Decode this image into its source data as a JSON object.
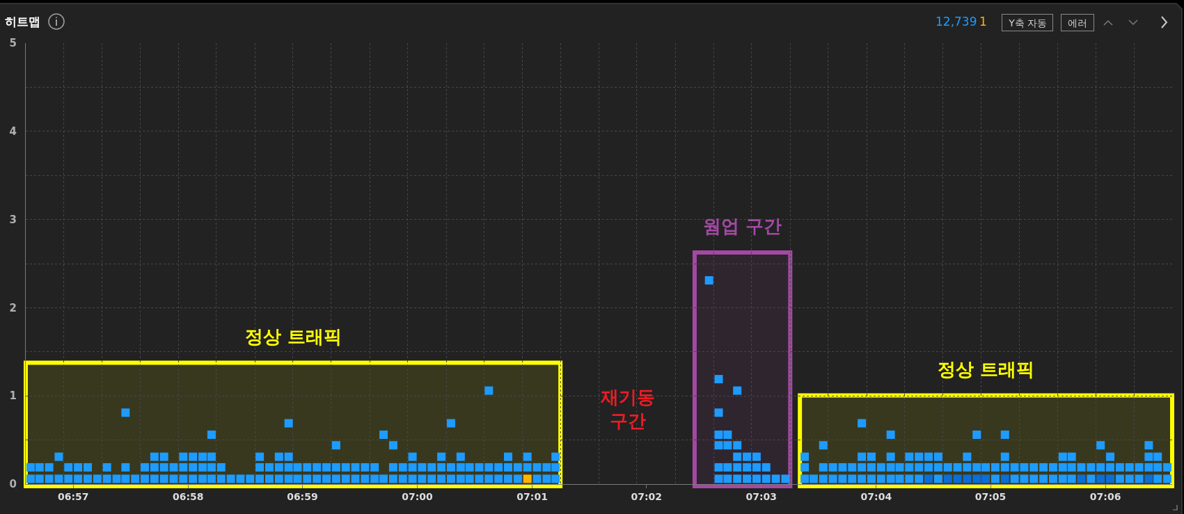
{
  "chart_data": {
    "type": "scatter",
    "title": "히트맵",
    "marker": "square",
    "grid": true,
    "legend": "top right",
    "xlim": [
      6.9431,
      7.1097
    ],
    "ylim": [
      0,
      5
    ],
    "xticks": [
      {
        "value": 6.9486,
        "label": null
      },
      {
        "value": 6.95,
        "label": "06:57"
      },
      {
        "value": 6.9542,
        "label": null
      },
      {
        "value": 6.9597,
        "label": null
      },
      {
        "value": 6.9653,
        "label": null
      },
      {
        "value": 6.9667,
        "label": "06:58"
      },
      {
        "value": 6.9708,
        "label": null
      },
      {
        "value": 6.9764,
        "label": null
      },
      {
        "value": 6.9819,
        "label": null
      },
      {
        "value": 6.9833,
        "label": "06:59"
      },
      {
        "value": 6.9875,
        "label": null
      },
      {
        "value": 6.9931,
        "label": null
      },
      {
        "value": 6.9986,
        "label": null
      },
      {
        "value": 7,
        "label": "07:00"
      },
      {
        "value": 7.0042,
        "label": null
      },
      {
        "value": 7.0097,
        "label": null
      },
      {
        "value": 7.0153,
        "label": null
      },
      {
        "value": 7.0167,
        "label": "07:01"
      },
      {
        "value": 7.0208,
        "label": null
      },
      {
        "value": 7.0264,
        "label": null
      },
      {
        "value": 7.0319,
        "label": null
      },
      {
        "value": 7.0333,
        "label": "07:02"
      },
      {
        "value": 7.0375,
        "label": null
      },
      {
        "value": 7.0431,
        "label": null
      },
      {
        "value": 7.0486,
        "label": null
      },
      {
        "value": 7.05,
        "label": "07:03"
      },
      {
        "value": 7.0542,
        "label": null
      },
      {
        "value": 7.0597,
        "label": null
      },
      {
        "value": 7.0653,
        "label": null
      },
      {
        "value": 7.0667,
        "label": "07:04"
      },
      {
        "value": 7.0708,
        "label": null
      },
      {
        "value": 7.0764,
        "label": null
      },
      {
        "value": 7.0819,
        "label": null
      },
      {
        "value": 7.0833,
        "label": "07:05"
      },
      {
        "value": 7.0875,
        "label": null
      },
      {
        "value": 7.0931,
        "label": null
      },
      {
        "value": 7.0986,
        "label": null
      },
      {
        "value": 7.1,
        "label": "07:06"
      },
      {
        "value": 7.1042,
        "label": null
      }
    ],
    "yticks": [
      0,
      {
        "value": 0.5,
        "label": null
      },
      1,
      {
        "value": 1.5,
        "label": null
      },
      2,
      {
        "value": 2.5,
        "label": null
      },
      3,
      {
        "value": 3.5,
        "label": null
      },
      4,
      {
        "value": 4.5,
        "label": null
      },
      5
    ],
    "series": [
      {
        "name": "12,739",
        "color": "#1e9bff",
        "x": [
          6.9438,
          6.9438,
          6.9451,
          6.9451,
          6.9465,
          6.9465,
          6.9479,
          6.9479,
          6.9493,
          6.9493,
          6.9507,
          6.9507,
          6.9521,
          6.9521,
          6.9535,
          6.9549,
          6.9549,
          6.9563,
          6.9576,
          6.9576,
          6.9576,
          6.959,
          6.9604,
          6.9604,
          6.9618,
          6.9618,
          6.9618,
          6.9632,
          6.9632,
          6.9632,
          6.9646,
          6.9646,
          6.966,
          6.966,
          6.966,
          6.9674,
          6.9674,
          6.9674,
          6.9688,
          6.9688,
          6.9688,
          6.9701,
          6.9701,
          6.9701,
          6.9701,
          6.9715,
          6.9715,
          6.9729,
          6.9743,
          6.9757,
          6.9771,
          6.9771,
          6.9771,
          6.9785,
          6.9785,
          6.9799,
          6.9799,
          6.9799,
          6.9813,
          6.9813,
          6.9813,
          6.9813,
          6.9826,
          6.9826,
          6.984,
          6.984,
          6.9854,
          6.9854,
          6.9868,
          6.9868,
          6.9882,
          6.9882,
          6.9882,
          6.9896,
          6.9896,
          6.991,
          6.991,
          6.9924,
          6.9924,
          6.9938,
          6.9938,
          6.9951,
          6.9951,
          6.9965,
          6.9965,
          6.9965,
          6.9979,
          6.9979,
          6.9993,
          6.9993,
          6.9993,
          7.0007,
          7.0007,
          7.0021,
          7.0021,
          7.0035,
          7.0035,
          7.0035,
          7.0049,
          7.0049,
          7.0049,
          7.0063,
          7.0063,
          7.0063,
          7.0076,
          7.0076,
          7.009,
          7.009,
          7.0104,
          7.0104,
          7.0104,
          7.0118,
          7.0118,
          7.0132,
          7.0132,
          7.0132,
          7.0146,
          7.0146,
          7.016,
          7.016,
          7.0174,
          7.0174,
          7.0188,
          7.0188,
          7.0201,
          7.0201,
          7.0201,
          7.0424,
          7.0438,
          7.0438,
          7.0438,
          7.0438,
          7.0438,
          7.0438,
          7.0451,
          7.0451,
          7.0451,
          7.0451,
          7.0465,
          7.0465,
          7.0465,
          7.0465,
          7.0465,
          7.0479,
          7.0479,
          7.0479,
          7.0493,
          7.0493,
          7.0493,
          7.0507,
          7.0507,
          7.0521,
          7.0535,
          7.0563,
          7.0563,
          7.0563,
          7.0576,
          7.059,
          7.059,
          7.059,
          7.0604,
          7.0604,
          7.0618,
          7.0618,
          7.0632,
          7.0632,
          7.0646,
          7.0646,
          7.0646,
          7.0646,
          7.066,
          7.066,
          7.066,
          7.0674,
          7.0674,
          7.0688,
          7.0688,
          7.0688,
          7.0688,
          7.0701,
          7.0701,
          7.0715,
          7.0715,
          7.0715,
          7.0729,
          7.0729,
          7.0729,
          7.0743,
          7.0743,
          7.0757,
          7.0757,
          7.0757,
          7.0771,
          7.0785,
          7.0799,
          7.0799,
          7.0813,
          7.0813,
          7.0826,
          7.084,
          7.084,
          7.0854,
          7.0854,
          7.0854,
          7.0868,
          7.0868,
          7.0882,
          7.0882,
          7.0896,
          7.0896,
          7.091,
          7.091,
          7.0924,
          7.0924,
          7.0938,
          7.0938,
          7.0938,
          7.0951,
          7.0951,
          7.0951,
          7.0965,
          7.0979,
          7.0979,
          7.0993,
          7.0993,
          7.1007,
          7.1007,
          7.1021,
          7.1021,
          7.1035,
          7.1035,
          7.1049,
          7.1049,
          7.1063,
          7.1063,
          7.1063,
          7.1076,
          7.1076,
          7.1076,
          7.109,
          7.109,
          7.0743,
          7.0771,
          7.0785,
          7.0799,
          7.0813,
          7.0826,
          7.0854,
          7.0965,
          7.0993,
          7.1007,
          7.1063
        ],
        "values": [
          0.06,
          0.19,
          0.06,
          0.19,
          0.06,
          0.19,
          0.06,
          0.31,
          0.06,
          0.19,
          0.06,
          0.19,
          0.06,
          0.19,
          0.06,
          0.06,
          0.19,
          0.06,
          0.06,
          0.19,
          0.81,
          0.06,
          0.06,
          0.19,
          0.06,
          0.19,
          0.31,
          0.06,
          0.19,
          0.31,
          0.06,
          0.19,
          0.06,
          0.19,
          0.31,
          0.06,
          0.19,
          0.31,
          0.06,
          0.19,
          0.31,
          0.06,
          0.19,
          0.31,
          0.56,
          0.06,
          0.19,
          0.06,
          0.06,
          0.06,
          0.06,
          0.19,
          0.31,
          0.06,
          0.19,
          0.06,
          0.19,
          0.31,
          0.06,
          0.19,
          0.31,
          0.69,
          0.06,
          0.19,
          0.06,
          0.19,
          0.06,
          0.19,
          0.06,
          0.19,
          0.06,
          0.19,
          0.44,
          0.06,
          0.19,
          0.06,
          0.19,
          0.06,
          0.19,
          0.06,
          0.19,
          0.06,
          0.56,
          0.06,
          0.19,
          0.44,
          0.06,
          0.19,
          0.06,
          0.19,
          0.31,
          0.06,
          0.19,
          0.06,
          0.19,
          0.06,
          0.19,
          0.31,
          0.06,
          0.19,
          0.69,
          0.06,
          0.19,
          0.31,
          0.06,
          0.19,
          0.06,
          0.19,
          0.06,
          0.19,
          1.06,
          0.06,
          0.19,
          0.06,
          0.19,
          0.31,
          0.06,
          0.19,
          0.19,
          0.31,
          0.06,
          0.19,
          0.06,
          0.19,
          0.06,
          0.19,
          0.31,
          2.31,
          0.06,
          0.19,
          0.44,
          0.56,
          0.81,
          1.19,
          0.06,
          0.19,
          0.44,
          0.56,
          0.06,
          0.19,
          0.31,
          0.44,
          1.06,
          0.06,
          0.19,
          0.31,
          0.06,
          0.19,
          0.31,
          0.06,
          0.19,
          0.06,
          0.06,
          0.06,
          0.19,
          0.31,
          0.06,
          0.06,
          0.19,
          0.44,
          0.06,
          0.19,
          0.06,
          0.19,
          0.06,
          0.19,
          0.06,
          0.19,
          0.31,
          0.69,
          0.06,
          0.19,
          0.31,
          0.06,
          0.19,
          0.06,
          0.19,
          0.31,
          0.56,
          0.06,
          0.19,
          0.06,
          0.19,
          0.31,
          0.06,
          0.19,
          0.31,
          0.19,
          0.31,
          0.06,
          0.19,
          0.31,
          0.19,
          0.19,
          0.19,
          0.31,
          0.19,
          0.56,
          0.19,
          0.06,
          0.19,
          0.19,
          0.31,
          0.56,
          0.06,
          0.19,
          0.06,
          0.19,
          0.06,
          0.19,
          0.06,
          0.19,
          0.06,
          0.19,
          0.06,
          0.19,
          0.31,
          0.06,
          0.19,
          0.31,
          0.19,
          0.06,
          0.19,
          0.19,
          0.44,
          0.19,
          0.31,
          0.06,
          0.19,
          0.06,
          0.19,
          0.06,
          0.19,
          0.19,
          0.31,
          0.44,
          0.06,
          0.19,
          0.31,
          0.06,
          0.19,
          0.06,
          0.06,
          0.06,
          0.06,
          0.06,
          0.06,
          0.06,
          0.06,
          0.06,
          0.06,
          0.06
        ],
        "colors": [
          "#1e9bff",
          "#1e9bff",
          "#1e9bff",
          "#1e9bff",
          "#1e9bff",
          "#1e9bff",
          "#1e9bff",
          "#1e9bff",
          "#1e9bff",
          "#1e9bff",
          "#1e9bff",
          "#1e9bff",
          "#1e9bff",
          "#1e9bff",
          "#1e9bff",
          "#1e9bff",
          "#1e9bff",
          "#1e9bff",
          "#1e9bff",
          "#1e9bff",
          "#1e9bff",
          "#1e9bff",
          "#1e9bff",
          "#1e9bff",
          "#1e9bff",
          "#1e9bff",
          "#1e9bff",
          "#1e9bff",
          "#1e9bff",
          "#1e9bff",
          "#1e9bff",
          "#1e9bff",
          "#1e9bff",
          "#1e9bff",
          "#1e9bff",
          "#1e9bff",
          "#1e9bff",
          "#1e9bff",
          "#1e9bff",
          "#1e9bff",
          "#1e9bff",
          "#1e9bff",
          "#1e9bff",
          "#1e9bff",
          "#1e9bff",
          "#1e9bff",
          "#1e9bff",
          "#1e9bff",
          "#1e9bff",
          "#1e9bff",
          "#1e9bff",
          "#1e9bff",
          "#1e9bff",
          "#1e9bff",
          "#1e9bff",
          "#1e9bff",
          "#1e9bff",
          "#1e9bff",
          "#1e9bff",
          "#1e9bff",
          "#1e9bff",
          "#1e9bff",
          "#1e9bff",
          "#1e9bff",
          "#1e9bff",
          "#1e9bff",
          "#1e9bff",
          "#1e9bff",
          "#1e9bff",
          "#1e9bff",
          "#1e9bff",
          "#1e9bff",
          "#1e9bff",
          "#1e9bff",
          "#1e9bff",
          "#1e9bff",
          "#1e9bff",
          "#1e9bff",
          "#1e9bff",
          "#1e9bff",
          "#1e9bff",
          "#1e9bff",
          "#1e9bff",
          "#1e9bff",
          "#1e9bff",
          "#1e9bff",
          "#1e9bff",
          "#1e9bff",
          "#1e9bff",
          "#1e9bff",
          "#1e9bff",
          "#1e9bff",
          "#1e9bff",
          "#1e9bff",
          "#1e9bff",
          "#1e9bff",
          "#1e9bff",
          "#1e9bff",
          "#1e9bff",
          "#1e9bff",
          "#1e9bff",
          "#1e9bff",
          "#1e9bff",
          "#1e9bff",
          "#1e9bff",
          "#1e9bff",
          "#1e9bff",
          "#1e9bff",
          "#1e9bff",
          "#1e9bff",
          "#1e9bff",
          "#1e9bff",
          "#1e9bff",
          "#1e9bff",
          "#1e9bff",
          "#1e9bff",
          "#1e9bff",
          "#1e9bff",
          "#1e9bff",
          "#1e9bff",
          "#1e9bff",
          "#1e9bff",
          "#1e9bff",
          "#1e9bff",
          "#1e9bff",
          "#1e9bff",
          "#1e9bff",
          "#1e9bff",
          "#1e9bff",
          "#1e9bff",
          "#1e9bff",
          "#1e9bff",
          "#1e9bff",
          "#1e9bff",
          "#1e9bff",
          "#1e9bff",
          "#1e9bff",
          "#1e9bff",
          "#1e9bff",
          "#1e9bff",
          "#1e9bff",
          "#1e9bff",
          "#1e9bff",
          "#1e9bff",
          "#1e9bff",
          "#1e9bff",
          "#1e9bff",
          "#1e9bff",
          "#1e9bff",
          "#1e9bff",
          "#1e9bff",
          "#1e9bff",
          "#1e9bff",
          "#1e9bff",
          "#1e9bff",
          "#1e9bff",
          "#1e9bff",
          "#1e9bff",
          "#1e9bff",
          "#1e9bff",
          "#1e9bff",
          "#1e9bff",
          "#1e9bff",
          "#1e9bff",
          "#1e9bff",
          "#1e9bff",
          "#1e9bff",
          "#1e9bff",
          "#1e9bff",
          "#1e9bff",
          "#1e9bff",
          "#1e9bff",
          "#1e9bff",
          "#1e9bff",
          "#1e9bff",
          "#1e9bff",
          "#1e9bff",
          "#1e9bff",
          "#1e9bff",
          "#1e9bff",
          "#1e9bff",
          "#1e9bff",
          "#1e9bff",
          "#1e9bff",
          "#1e9bff",
          "#1e9bff",
          "#1e9bff",
          "#1e9bff",
          "#1e9bff",
          "#1e9bff",
          "#1e9bff",
          "#1e9bff",
          "#1e9bff",
          "#1e9bff",
          "#1e9bff",
          "#1e9bff",
          "#1e9bff",
          "#1e9bff",
          "#1e9bff",
          "#1e9bff",
          "#1e9bff",
          "#1e9bff",
          "#1e9bff",
          "#1e9bff",
          "#1e9bff",
          "#1e9bff",
          "#1e9bff",
          "#1e9bff",
          "#1e9bff",
          "#1e9bff",
          "#1e9bff",
          "#1e9bff",
          "#1e9bff",
          "#1e9bff",
          "#1e9bff",
          "#1e9bff",
          "#1e9bff",
          "#1e9bff",
          "#1e9bff",
          "#1e9bff",
          "#1e9bff",
          "#1e9bff",
          "#1e9bff",
          "#1e9bff",
          "#1e9bff",
          "#1e9bff",
          "#1e9bff",
          "#1e9bff",
          "#1e9bff",
          "#1e9bff",
          "#1e9bff",
          "#1e9bff",
          "#1e9bff",
          "#1e9bff",
          "#1e9bff",
          "#1e9bff",
          "#1e9bff",
          "#1e9bff",
          "#1e9bff",
          "#1e9bff",
          "#1e9bff",
          "#0b6ed6",
          "#0b6ed6",
          "#0b6ed6",
          "#0b6ed6",
          "#0b6ed6",
          "#0b6ed6",
          "#0b6ed6",
          "#0b6ed6",
          "#0b6ed6",
          "#0b6ed6",
          "#0b6ed6"
        ]
      },
      {
        "name": "1",
        "color": "#ffb400",
        "x": [
          7.016
        ],
        "values": [
          0.06
        ]
      }
    ],
    "bands": [
      {
        "axis": "x",
        "from": 6.9431,
        "to": 7.0208,
        "label": "정상 트래픽",
        "color": "#ffff00"
      },
      {
        "axis": "x",
        "from": 7.0403,
        "to": 7.0542,
        "label": "웜업 구간",
        "color": "#a349a4"
      },
      {
        "axis": "x",
        "from": 7.0556,
        "to": 7.1097,
        "label": "정상 트래픽",
        "color": "#ffff00"
      }
    ],
    "annotations": [
      "Y축 자동",
      "에러",
      "재기동\n구간"
    ]
  }
}
